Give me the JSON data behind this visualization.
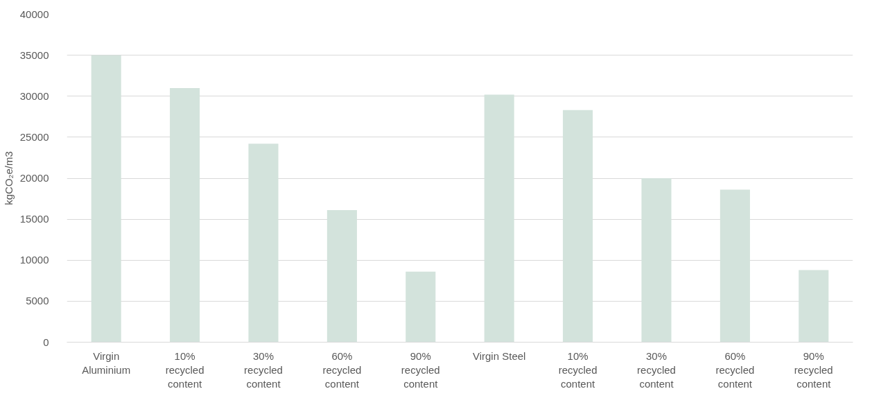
{
  "chart_data": {
    "type": "bar",
    "ylabel": "kgCO₂e/m3",
    "categories": [
      "Virgin\nAluminium",
      "10%\nrecycled\ncontent",
      "30%\nrecycled\ncontent",
      "60%\nrecycled\ncontent",
      "90%\nrecycled\ncontent",
      "Virgin Steel",
      "10%\nrecycled\ncontent",
      "30%\nrecycled\ncontent",
      "60%\nrecycled\ncontent",
      "90%\nrecycled\ncontent"
    ],
    "values": [
      35000,
      31000,
      24200,
      16100,
      8600,
      30200,
      28300,
      20000,
      18600,
      8800
    ],
    "color": "#d3e3dc",
    "ylim": [
      0,
      40000
    ],
    "yticks": [
      0,
      5000,
      10000,
      15000,
      20000,
      25000,
      30000,
      35000,
      40000
    ],
    "grid": "y"
  }
}
